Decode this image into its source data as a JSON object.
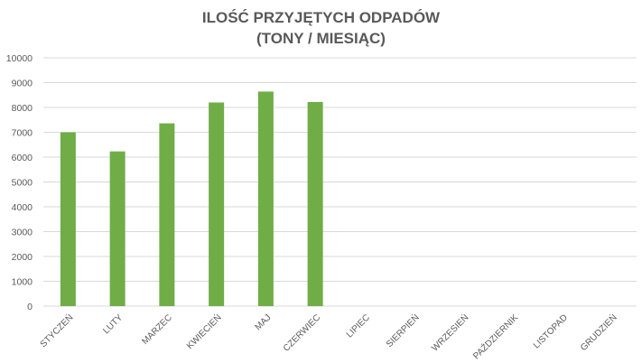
{
  "chart_data": {
    "type": "bar",
    "title_lines": [
      "ILOŚĆ PRZYJĘTYCH ODPADÓW",
      "(TONY / MIESIĄC)"
    ],
    "categories": [
      "STYCZEŃ",
      "LUTY",
      "MARZEC",
      "KWIECIEŃ",
      "MAJ",
      "CZERWIEC",
      "LIPIEC",
      "SIERPIEŃ",
      "WRZESIEŃ",
      "PAŹDZIERNIK",
      "LISTOPAD",
      "GRUDZIEŃ"
    ],
    "values": [
      7000,
      6230,
      7360,
      8200,
      8640,
      8220,
      null,
      null,
      null,
      null,
      null,
      null
    ],
    "ylim": [
      0,
      10000
    ],
    "yticks": [
      0,
      1000,
      2000,
      3000,
      4000,
      5000,
      6000,
      7000,
      8000,
      9000,
      10000
    ],
    "xlabel": "",
    "ylabel": "",
    "grid": true,
    "bar_color": "#70ad47",
    "grid_color": "#d9d9d9",
    "text_color": "#595959"
  }
}
